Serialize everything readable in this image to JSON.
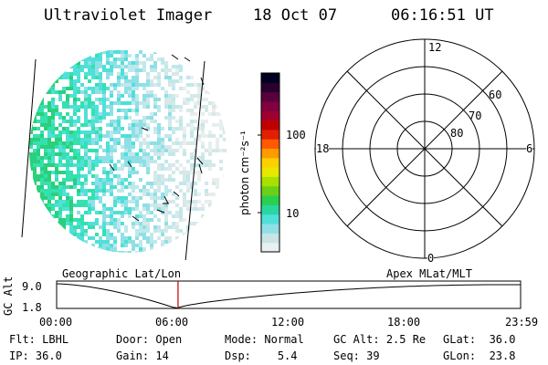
{
  "header": {
    "instrument": "Ultraviolet Imager",
    "date": "18 Oct 07",
    "time": "06:16:51 UT"
  },
  "colorbar": {
    "unit_label": "photon cm⁻²s⁻¹",
    "ticks": [
      "100",
      "10"
    ],
    "scale": "log",
    "colors": [
      "#e8f0f0",
      "#c8e4e4",
      "#8fe0e6",
      "#4fe0d8",
      "#28d8a0",
      "#2ad050",
      "#6ad018",
      "#a8e000",
      "#e6e800",
      "#ffd000",
      "#ff9a00",
      "#ff5a00",
      "#e02000",
      "#c00000",
      "#a00030",
      "#800040",
      "#58003a",
      "#280030",
      "#000020"
    ]
  },
  "polar": {
    "mlt_labels": {
      "top": "12",
      "left": "18",
      "right": "6",
      "bottom": "0"
    },
    "lat_labels": [
      "60",
      "70",
      "80"
    ]
  },
  "orbit": {
    "left_title": "Geographic Lat/Lon",
    "right_title": "Apex MLat/MLT",
    "ylabel": "GC Alt",
    "ymax_label": "9.0",
    "ymin_label": "1.8",
    "xticks": [
      "00:00",
      "06:00",
      "12:00",
      "18:00",
      "23:59"
    ],
    "marker_color": "#c00000"
  },
  "info": {
    "row1": [
      {
        "label": "Flt:",
        "value": "LBHL"
      },
      {
        "label": "Door:",
        "value": "Open"
      },
      {
        "label": "Mode:",
        "value": "Normal"
      },
      {
        "label": "GC Alt:",
        "value": "2.5 Re"
      },
      {
        "label": "GLat:",
        "value": "36.0"
      }
    ],
    "row2": [
      {
        "label": "IP:",
        "value": "36.0"
      },
      {
        "label": "Gain:",
        "value": "14"
      },
      {
        "label": "Dsp:",
        "value": "5.4"
      },
      {
        "label": "Seq:",
        "value": "39"
      },
      {
        "label": "GLon:",
        "value": "23.8"
      }
    ]
  }
}
